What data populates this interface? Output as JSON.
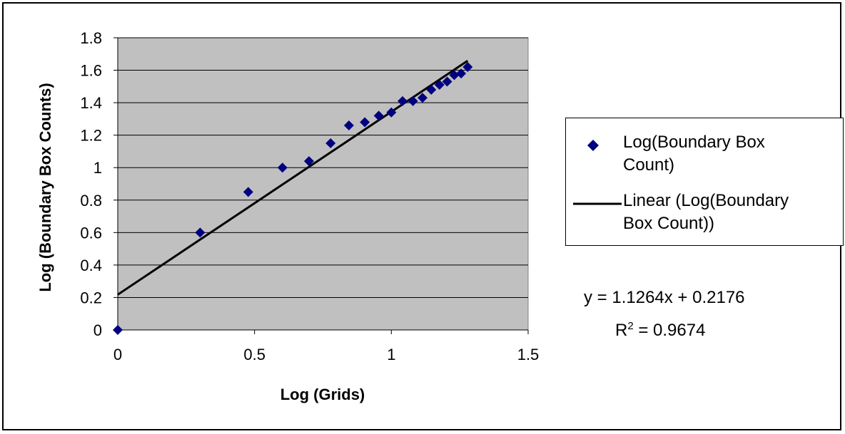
{
  "chart_data": {
    "type": "scatter",
    "xlabel": "Log (Grids)",
    "ylabel": "Log (Boundary Box Counts)",
    "xlim": [
      0,
      1.5
    ],
    "ylim": [
      0,
      1.8
    ],
    "x_ticks": [
      "0",
      "0.5",
      "1",
      "1.5"
    ],
    "y_ticks": [
      "0",
      "0.2",
      "0.4",
      "0.6",
      "0.8",
      "1",
      "1.2",
      "1.4",
      "1.6",
      "1.8"
    ],
    "grid": "horizontal",
    "plot_background": "#c0c0c0",
    "legend_position": "right",
    "series": [
      {
        "name": "Log(Boundary Box Count)",
        "kind": "points",
        "marker": "diamond",
        "color": "#000080",
        "x": [
          0,
          0.301,
          0.477,
          0.602,
          0.699,
          0.778,
          0.845,
          0.903,
          0.954,
          1.0,
          1.041,
          1.079,
          1.114,
          1.146,
          1.176,
          1.204,
          1.23,
          1.255,
          1.279
        ],
        "y": [
          0,
          0.6,
          0.85,
          1.0,
          1.04,
          1.15,
          1.26,
          1.28,
          1.32,
          1.34,
          1.41,
          1.41,
          1.43,
          1.48,
          1.51,
          1.53,
          1.57,
          1.58,
          1.62
        ]
      },
      {
        "name": "Linear (Log(Boundary Box Count))",
        "kind": "trendline",
        "color": "#000000",
        "slope": 1.1264,
        "intercept": 0.2176,
        "x_range": [
          0,
          1.279
        ]
      }
    ],
    "equation": "y = 1.1264x + 0.2176",
    "r_squared_label": "R",
    "r_squared_exponent": "2",
    "r_squared_value": " = 0.9674"
  },
  "legend": {
    "items": [
      {
        "label": "Log(Boundary Box\nCount)",
        "icon": "diamond-marker"
      },
      {
        "label": "Linear (Log(Boundary\nBox Count))",
        "icon": "line-marker"
      }
    ]
  }
}
